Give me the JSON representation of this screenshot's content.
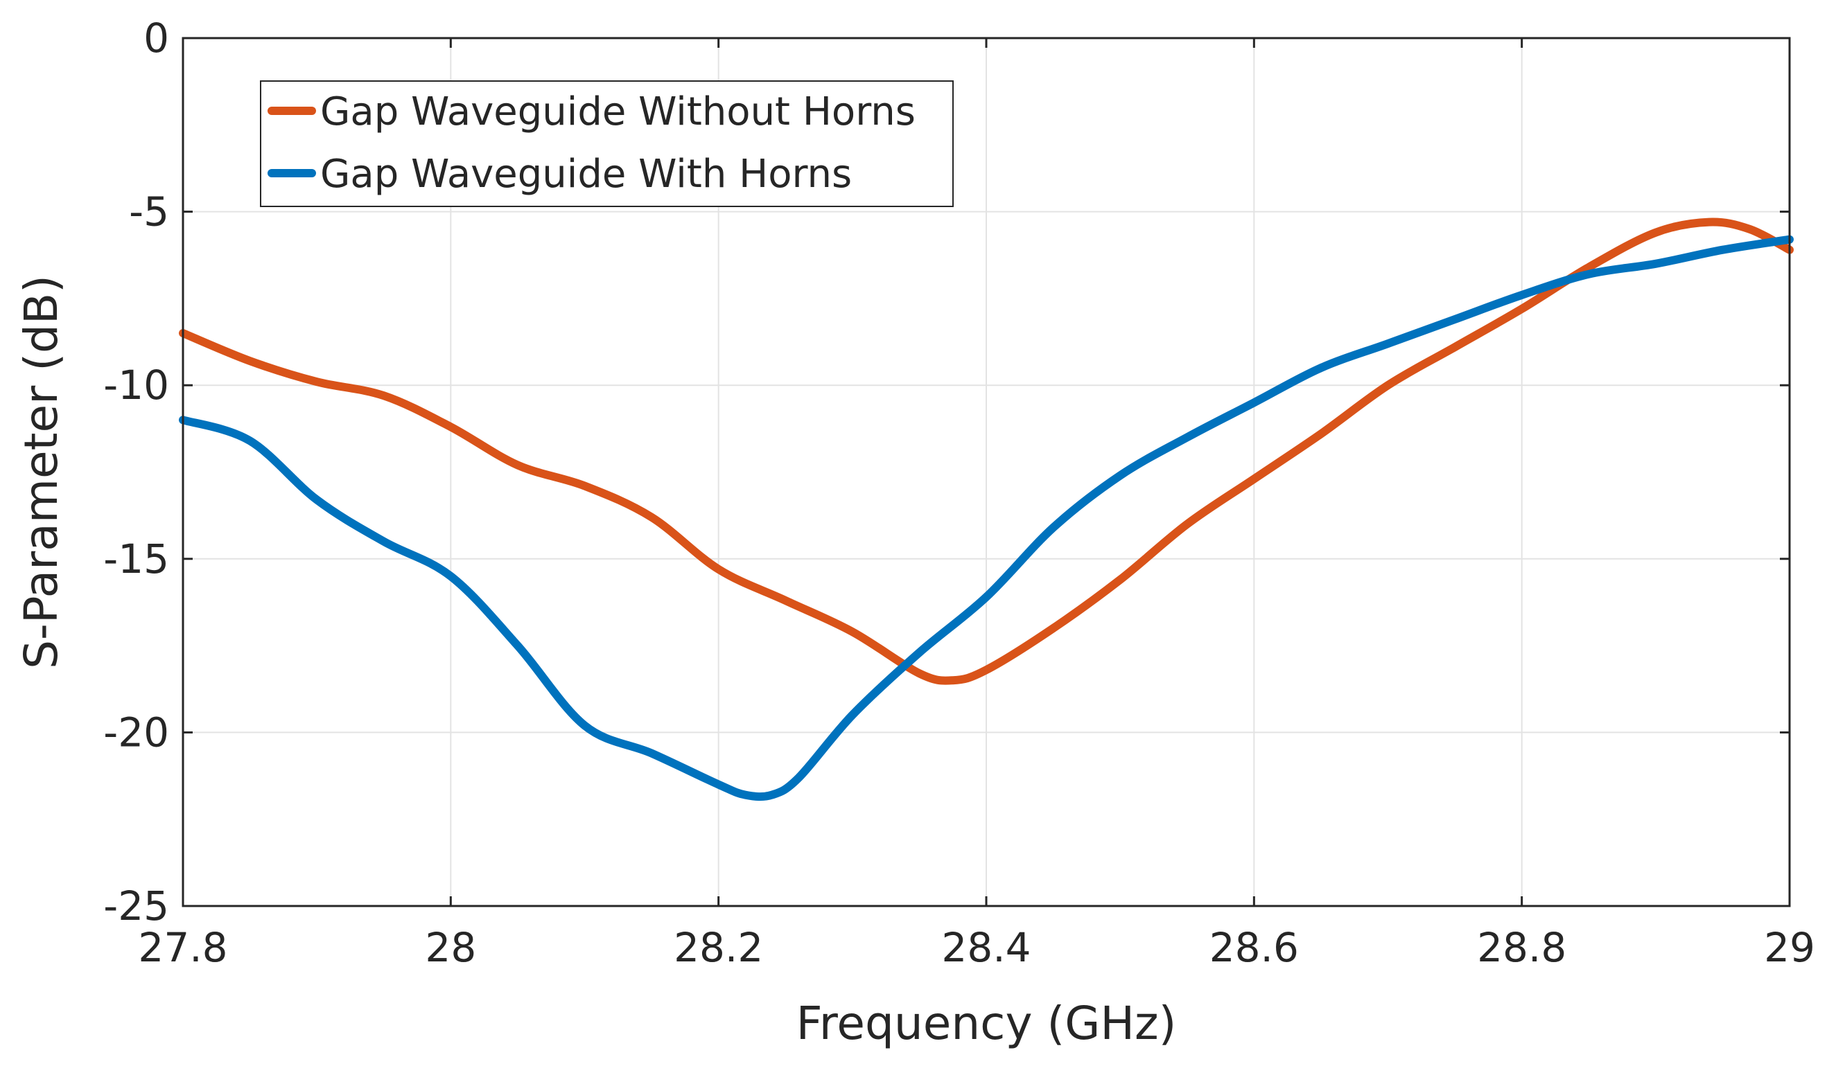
{
  "chart_data": {
    "type": "line",
    "title": "",
    "xlabel": "Frequency (GHz)",
    "ylabel": "S-Parameter (dB)",
    "xlim": [
      27.8,
      29
    ],
    "ylim": [
      -25,
      0
    ],
    "xticks": [
      27.8,
      28,
      28.2,
      28.4,
      28.6,
      28.8,
      29
    ],
    "xtick_labels": [
      "27.8",
      "28",
      "28.2",
      "28.4",
      "28.6",
      "28.8",
      "29"
    ],
    "yticks": [
      0,
      -5,
      -10,
      -15,
      -20,
      -25
    ],
    "ytick_labels": [
      "0",
      "-5",
      "-10",
      "-15",
      "-20",
      "-25"
    ],
    "grid": true,
    "legend_position": "top-left",
    "series": [
      {
        "name": "Gap Waveguide Without Horns",
        "color": "#D95319",
        "x": [
          27.8,
          27.85,
          27.9,
          27.95,
          28.0,
          28.05,
          28.1,
          28.15,
          28.2,
          28.25,
          28.3,
          28.35,
          28.375,
          28.4,
          28.45,
          28.5,
          28.55,
          28.6,
          28.65,
          28.7,
          28.75,
          28.8,
          28.85,
          28.9,
          28.94,
          28.97,
          29.0
        ],
        "y": [
          -8.5,
          -9.3,
          -9.9,
          -10.3,
          -11.2,
          -12.3,
          -12.9,
          -13.8,
          -15.3,
          -16.2,
          -17.1,
          -18.3,
          -18.5,
          -18.2,
          -17.0,
          -15.6,
          -14.0,
          -12.7,
          -11.4,
          -10.0,
          -8.9,
          -7.8,
          -6.6,
          -5.6,
          -5.3,
          -5.5,
          -6.1
        ]
      },
      {
        "name": "Gap Waveguide With Horns",
        "color": "#0072BD",
        "x": [
          27.8,
          27.85,
          27.9,
          27.95,
          28.0,
          28.05,
          28.1,
          28.15,
          28.2,
          28.22,
          28.24,
          28.26,
          28.3,
          28.35,
          28.4,
          28.45,
          28.5,
          28.55,
          28.6,
          28.65,
          28.7,
          28.75,
          28.8,
          28.85,
          28.9,
          28.95,
          29.0
        ],
        "y": [
          -11.0,
          -11.6,
          -13.3,
          -14.5,
          -15.5,
          -17.5,
          -19.8,
          -20.6,
          -21.5,
          -21.8,
          -21.8,
          -21.3,
          -19.5,
          -17.7,
          -16.1,
          -14.1,
          -12.6,
          -11.5,
          -10.5,
          -9.5,
          -8.8,
          -8.1,
          -7.4,
          -6.8,
          -6.5,
          -6.1,
          -5.8
        ]
      }
    ]
  }
}
